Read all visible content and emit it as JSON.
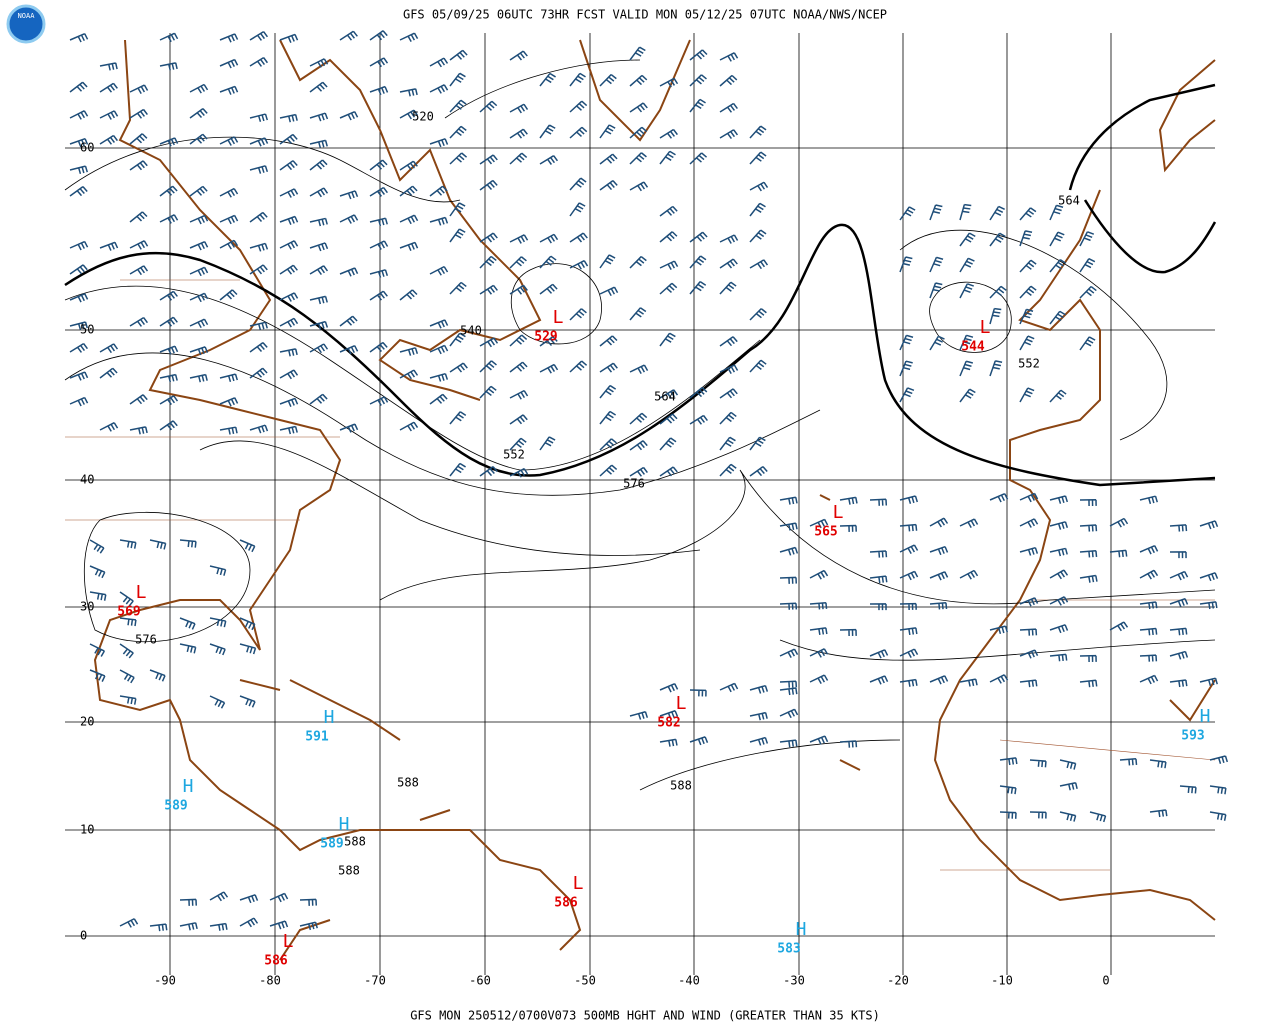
{
  "header": {
    "logo": "NOAA",
    "title": "GFS 05/09/25 06UTC 73HR FCST VALID MON 05/12/25 07UTC NOAA/NWS/NCEP"
  },
  "footer": "GFS MON 250512/0700V073 500MB HGHT AND WIND (GREATER THAN 35 KTS)",
  "lat_labels": [
    60,
    50,
    40,
    30,
    20,
    10,
    0
  ],
  "lon_labels": [
    -90,
    -80,
    -70,
    -60,
    -50,
    -40,
    -30,
    -20,
    -10,
    0
  ],
  "contour_labels": [
    520,
    540,
    552,
    564,
    576,
    564,
    552,
    576,
    588,
    588,
    588,
    588
  ],
  "pressure_centers": [
    {
      "symbol": "L",
      "value": 529
    },
    {
      "symbol": "L",
      "value": 544
    },
    {
      "symbol": "L",
      "value": 565
    },
    {
      "symbol": "L",
      "value": 569
    },
    {
      "symbol": "L",
      "value": 582
    },
    {
      "symbol": "L",
      "value": 586
    },
    {
      "symbol": "L",
      "value": 586
    },
    {
      "symbol": "H",
      "value": 591
    },
    {
      "symbol": "H",
      "value": 589
    },
    {
      "symbol": "H",
      "value": 589
    },
    {
      "symbol": "H",
      "value": 593
    },
    {
      "symbol": "H",
      "value": 583
    }
  ]
}
